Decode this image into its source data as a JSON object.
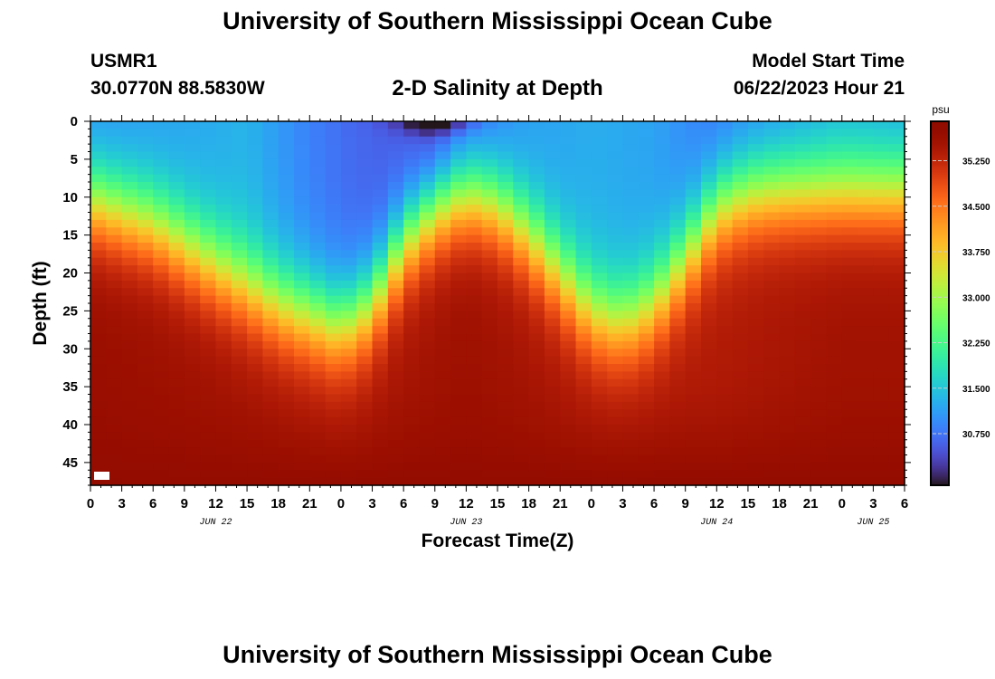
{
  "header": {
    "title": "University of Southern Mississippi Ocean Cube",
    "station_id": "USMR1",
    "station_coords": "30.0770N  88.5830W",
    "plot_title": "2-D Salinity at Depth",
    "model_start_label": "Model Start Time",
    "model_start_value": "06/22/2023 Hour 21"
  },
  "footer": {
    "title": "University of Southern Mississippi Ocean Cube"
  },
  "chart_data": {
    "type": "heatmap",
    "title": "2-D Salinity at Depth",
    "xlabel": "Forecast Time(Z)",
    "ylabel": "Depth (ft)",
    "x_tick_labels": [
      "0",
      "3",
      "6",
      "9",
      "12",
      "15",
      "18",
      "21",
      "0",
      "3",
      "6",
      "9",
      "12",
      "15",
      "18",
      "21",
      "0",
      "3",
      "6",
      "9",
      "12",
      "15",
      "18",
      "21",
      "0",
      "3",
      "6"
    ],
    "date_labels": [
      {
        "label": "JUN 22",
        "tick_index": 4
      },
      {
        "label": "JUN 23",
        "tick_index": 12
      },
      {
        "label": "JUN 24",
        "tick_index": 20
      },
      {
        "label": "JUN 25",
        "tick_index": 25
      }
    ],
    "x_range_hours": [
      0,
      78
    ],
    "y_tick_labels": [
      "0",
      "5",
      "10",
      "15",
      "20",
      "25",
      "30",
      "35",
      "40",
      "45"
    ],
    "y_range_ft": [
      0,
      48
    ],
    "y_inverted": true,
    "colorbar": {
      "unit": "psu",
      "tick_labels": [
        "35.250",
        "34.500",
        "33.750",
        "33.000",
        "32.250",
        "31.500",
        "30.750"
      ],
      "range": [
        29.9,
        35.9
      ],
      "colormap": "turbo"
    },
    "cell": {
      "hours": 1.5,
      "feet": 1.0
    },
    "salinity_model": {
      "bottom": 35.75,
      "deep": 35.35,
      "surface": 31.3,
      "halocline_depth_by_hour": [
        [
          0,
          10.5
        ],
        [
          6,
          13.5
        ],
        [
          12,
          19
        ],
        [
          18,
          24
        ],
        [
          24,
          27
        ],
        [
          27,
          24
        ],
        [
          30,
          16
        ],
        [
          33,
          11.5
        ],
        [
          36,
          9.5
        ],
        [
          39,
          11
        ],
        [
          42,
          15
        ],
        [
          45,
          20
        ],
        [
          48,
          25
        ],
        [
          51,
          26.5
        ],
        [
          54,
          24
        ],
        [
          57,
          18
        ],
        [
          60,
          11.5
        ],
        [
          63,
          9.5
        ],
        [
          66,
          9
        ],
        [
          72,
          9
        ],
        [
          78,
          9
        ]
      ],
      "surface_low_by_hour": [
        [
          0,
          30.95
        ],
        [
          15,
          31.3
        ],
        [
          21,
          30.85
        ],
        [
          25,
          30.65
        ],
        [
          30,
          30.5
        ],
        [
          33,
          30.2
        ],
        [
          36,
          30.6
        ],
        [
          42,
          31.1
        ],
        [
          48,
          31.25
        ],
        [
          54,
          31.15
        ],
        [
          60,
          30.75
        ],
        [
          66,
          30.95
        ],
        [
          72,
          31.2
        ],
        [
          78,
          31.1
        ]
      ],
      "deep_extra_by_hour": [
        [
          0,
          0.3
        ],
        [
          12,
          0.2
        ],
        [
          24,
          0.05
        ],
        [
          36,
          0.25
        ],
        [
          48,
          0.05
        ],
        [
          60,
          0.05
        ],
        [
          72,
          0.2
        ],
        [
          78,
          0.2
        ]
      ]
    }
  }
}
